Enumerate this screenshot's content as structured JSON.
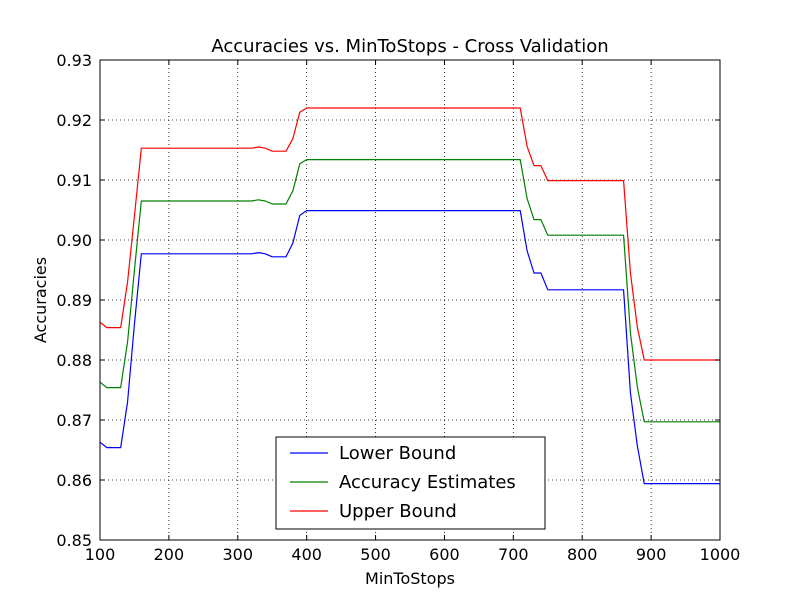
{
  "chart_data": {
    "type": "line",
    "title": "Accuracies vs. MinToStops - Cross Validation",
    "xlabel": "MinToStops",
    "ylabel": "Accuracies",
    "xlim": [
      100,
      1000
    ],
    "ylim": [
      0.85,
      0.93
    ],
    "xticks": [
      100,
      200,
      300,
      400,
      500,
      600,
      700,
      800,
      900,
      1000
    ],
    "yticks": [
      0.85,
      0.86,
      0.87,
      0.88,
      0.89,
      0.9,
      0.91,
      0.92,
      0.93
    ],
    "xtick_labels": [
      "100",
      "200",
      "300",
      "400",
      "500",
      "600",
      "700",
      "800",
      "900",
      "1000"
    ],
    "ytick_labels": [
      "0.85",
      "0.86",
      "0.87",
      "0.88",
      "0.89",
      "0.90",
      "0.91",
      "0.92",
      "0.93"
    ],
    "grid": true,
    "grid_style": "dotted",
    "legend_position": "lower-center",
    "x": [
      100,
      110,
      120,
      130,
      140,
      150,
      160,
      170,
      180,
      190,
      200,
      210,
      220,
      230,
      240,
      250,
      260,
      270,
      280,
      290,
      300,
      310,
      320,
      330,
      340,
      350,
      360,
      370,
      380,
      390,
      400,
      410,
      420,
      430,
      440,
      450,
      460,
      470,
      480,
      490,
      500,
      510,
      520,
      530,
      540,
      550,
      560,
      570,
      580,
      590,
      600,
      610,
      620,
      630,
      640,
      650,
      660,
      670,
      680,
      690,
      700,
      710,
      720,
      730,
      740,
      750,
      760,
      770,
      780,
      790,
      800,
      810,
      820,
      830,
      840,
      850,
      860,
      870,
      880,
      890,
      900,
      910,
      920,
      930,
      940,
      950,
      960,
      970,
      980,
      990,
      1000
    ],
    "series": [
      {
        "name": "Lower Bound",
        "color": "#0000ff",
        "values": [
          0.8663,
          0.8654,
          0.8654,
          0.8654,
          0.873,
          0.886,
          0.8977,
          0.8977,
          0.8977,
          0.8977,
          0.8977,
          0.8977,
          0.8977,
          0.8977,
          0.8977,
          0.8977,
          0.8977,
          0.8977,
          0.8977,
          0.8977,
          0.8977,
          0.8977,
          0.8977,
          0.8979,
          0.8977,
          0.8972,
          0.8972,
          0.8972,
          0.8995,
          0.9041,
          0.9049,
          0.9049,
          0.9049,
          0.9049,
          0.9049,
          0.9049,
          0.9049,
          0.9049,
          0.9049,
          0.9049,
          0.9049,
          0.9049,
          0.9049,
          0.9049,
          0.9049,
          0.9049,
          0.9049,
          0.9049,
          0.9049,
          0.9049,
          0.9049,
          0.9049,
          0.9049,
          0.9049,
          0.9049,
          0.9049,
          0.9049,
          0.9049,
          0.9049,
          0.9049,
          0.9049,
          0.9049,
          0.8982,
          0.8945,
          0.8945,
          0.8917,
          0.8917,
          0.8917,
          0.8917,
          0.8917,
          0.8917,
          0.8917,
          0.8917,
          0.8917,
          0.8917,
          0.8917,
          0.8917,
          0.8745,
          0.8657,
          0.8594,
          0.8594,
          0.8594,
          0.8594,
          0.8594,
          0.8594,
          0.8594,
          0.8594,
          0.8594,
          0.8594,
          0.8594,
          0.8594
        ]
      },
      {
        "name": "Accuracy Estimates",
        "color": "#008000",
        "values": [
          0.8763,
          0.8754,
          0.8754,
          0.8754,
          0.883,
          0.895,
          0.9065,
          0.9065,
          0.9065,
          0.9065,
          0.9065,
          0.9065,
          0.9065,
          0.9065,
          0.9065,
          0.9065,
          0.9065,
          0.9065,
          0.9065,
          0.9065,
          0.9065,
          0.9065,
          0.9065,
          0.9067,
          0.9065,
          0.906,
          0.906,
          0.906,
          0.9082,
          0.9127,
          0.9134,
          0.9134,
          0.9134,
          0.9134,
          0.9134,
          0.9134,
          0.9134,
          0.9134,
          0.9134,
          0.9134,
          0.9134,
          0.9134,
          0.9134,
          0.9134,
          0.9134,
          0.9134,
          0.9134,
          0.9134,
          0.9134,
          0.9134,
          0.9134,
          0.9134,
          0.9134,
          0.9134,
          0.9134,
          0.9134,
          0.9134,
          0.9134,
          0.9134,
          0.9134,
          0.9134,
          0.9134,
          0.9069,
          0.9034,
          0.9034,
          0.9008,
          0.9008,
          0.9008,
          0.9008,
          0.9008,
          0.9008,
          0.9008,
          0.9008,
          0.9008,
          0.9008,
          0.9008,
          0.9008,
          0.8845,
          0.8755,
          0.8697,
          0.8697,
          0.8697,
          0.8697,
          0.8697,
          0.8697,
          0.8697,
          0.8697,
          0.8697,
          0.8697,
          0.8697,
          0.8697
        ]
      },
      {
        "name": "Upper Bound",
        "color": "#ff0000",
        "values": [
          0.8863,
          0.8854,
          0.8854,
          0.8854,
          0.893,
          0.904,
          0.9153,
          0.9153,
          0.9153,
          0.9153,
          0.9153,
          0.9153,
          0.9153,
          0.9153,
          0.9153,
          0.9153,
          0.9153,
          0.9153,
          0.9153,
          0.9153,
          0.9153,
          0.9153,
          0.9153,
          0.9155,
          0.9153,
          0.9148,
          0.9148,
          0.9148,
          0.9169,
          0.9213,
          0.922,
          0.922,
          0.922,
          0.922,
          0.922,
          0.922,
          0.922,
          0.922,
          0.922,
          0.922,
          0.922,
          0.922,
          0.922,
          0.922,
          0.922,
          0.922,
          0.922,
          0.922,
          0.922,
          0.922,
          0.922,
          0.922,
          0.922,
          0.922,
          0.922,
          0.922,
          0.922,
          0.922,
          0.922,
          0.922,
          0.922,
          0.922,
          0.9156,
          0.9124,
          0.9124,
          0.9099,
          0.9099,
          0.9099,
          0.9099,
          0.9099,
          0.9099,
          0.9099,
          0.9099,
          0.9099,
          0.9099,
          0.9099,
          0.9099,
          0.8945,
          0.8855,
          0.88,
          0.88,
          0.88,
          0.88,
          0.88,
          0.88,
          0.88,
          0.88,
          0.88,
          0.88,
          0.88,
          0.88
        ]
      }
    ]
  }
}
